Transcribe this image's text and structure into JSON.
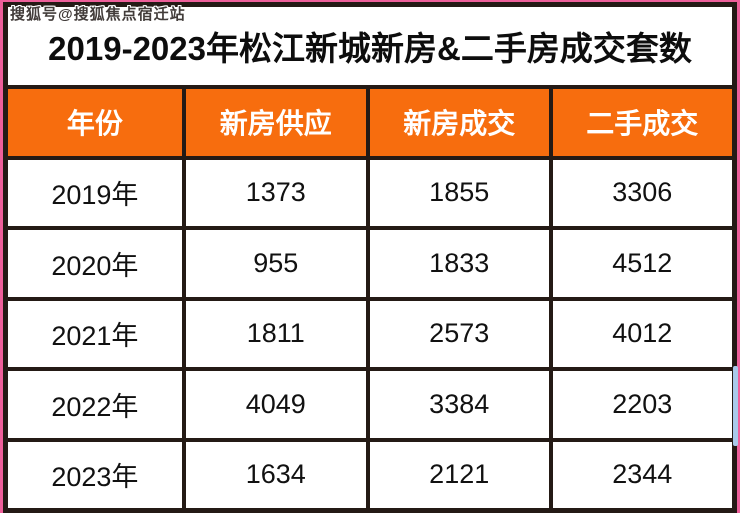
{
  "watermark": "搜狐号@搜狐焦点宿迁站",
  "title": "2019-2023年松江新城新房&二手房成交套数",
  "table": {
    "headers": [
      "年份",
      "新房供应",
      "新房成交",
      "二手成交"
    ],
    "rows": [
      [
        "2019年",
        "1373",
        "1855",
        "3306"
      ],
      [
        "2020年",
        "955",
        "1833",
        "4512"
      ],
      [
        "2021年",
        "1811",
        "2573",
        "4012"
      ],
      [
        "2022年",
        "4049",
        "3384",
        "2203"
      ],
      [
        "2023年",
        "1634",
        "2121",
        "2344"
      ]
    ]
  },
  "colors": {
    "page_pink": "#ee5f9a",
    "border_dark": "#241a15",
    "header_orange": "#f76d0e",
    "header_text": "#ffffff",
    "cell_bg": "#ffffff",
    "cell_text": "#111111",
    "selection_blue": "#a9c9ea"
  },
  "chart_data": {
    "type": "table",
    "title": "2019-2023年松江新城新房&二手房成交套数",
    "columns": [
      "年份",
      "新房供应",
      "新房成交",
      "二手成交"
    ],
    "rows": [
      [
        "2019年",
        1373,
        1855,
        3306
      ],
      [
        "2020年",
        955,
        1833,
        4512
      ],
      [
        "2021年",
        1811,
        2573,
        4012
      ],
      [
        "2022年",
        4049,
        3384,
        2203
      ],
      [
        "2023年",
        1634,
        2121,
        2344
      ]
    ]
  }
}
